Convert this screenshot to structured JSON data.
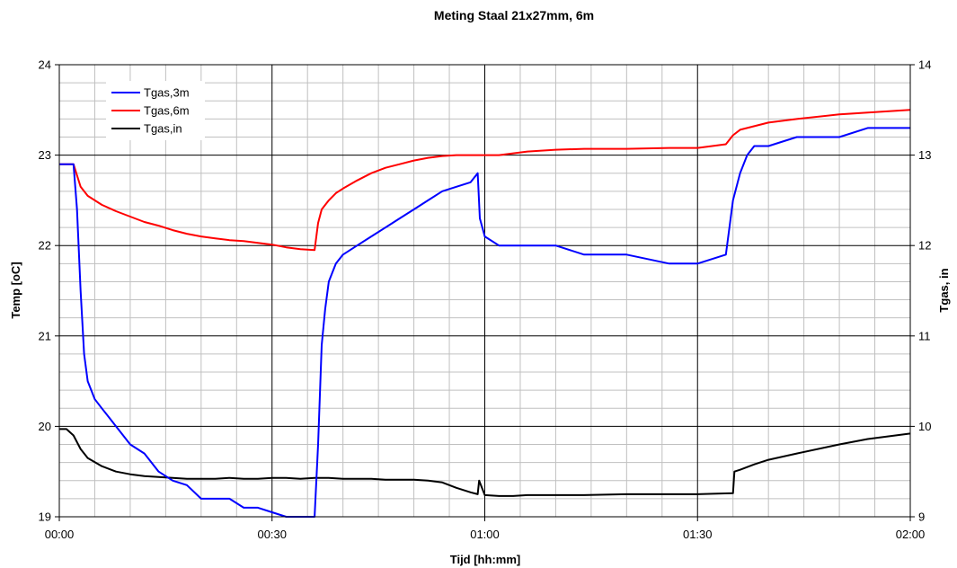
{
  "chart_data": {
    "type": "line",
    "title": "Meting Staal 21x27mm, 6m",
    "xlabel": "Tijd [hh:mm]",
    "ylabel": "Temp [oC]",
    "y2label": "Tgas, in",
    "x_unit": "minutes",
    "x_ticks": [
      "00:00",
      "00:30",
      "01:00",
      "01:30",
      "02:00"
    ],
    "xlim": [
      0,
      120
    ],
    "ylim": [
      19,
      24
    ],
    "y_ticks": [
      "19",
      "20",
      "21",
      "22",
      "23",
      "24"
    ],
    "y2lim": [
      9,
      14
    ],
    "y2_ticks": [
      "9",
      "10",
      "11",
      "12",
      "13",
      "14"
    ],
    "grid": true,
    "legend_position": "top-left",
    "legend": [
      "Tgas,3m",
      "Tgas,6m",
      "Tgas,in"
    ],
    "series": [
      {
        "name": "Tgas,3m",
        "axis": "left",
        "color": "#0000ff",
        "x": [
          0,
          2,
          2.5,
          3,
          3.5,
          4,
          5,
          6,
          7,
          8,
          10,
          12,
          14,
          16,
          18,
          20,
          22,
          24,
          26,
          28,
          30,
          32,
          34,
          36,
          36.5,
          37,
          37.5,
          38,
          38.5,
          39,
          40,
          42,
          44,
          46,
          48,
          50,
          52,
          54,
          56,
          58,
          59,
          59.3,
          60,
          62,
          64,
          66,
          70,
          74,
          80,
          86,
          90,
          94,
          95,
          96,
          97,
          98,
          100,
          104,
          110,
          114,
          120
        ],
        "values": [
          22.9,
          22.9,
          22.4,
          21.5,
          20.8,
          20.5,
          20.3,
          20.2,
          20.1,
          20.0,
          19.8,
          19.7,
          19.5,
          19.4,
          19.35,
          19.2,
          19.2,
          19.2,
          19.1,
          19.1,
          19.05,
          19.0,
          19.0,
          19.0,
          19.8,
          20.9,
          21.3,
          21.6,
          21.7,
          21.8,
          21.9,
          22.0,
          22.1,
          22.2,
          22.3,
          22.4,
          22.5,
          22.6,
          22.65,
          22.7,
          22.8,
          22.3,
          22.1,
          22.0,
          22.0,
          22.0,
          22.0,
          21.9,
          21.9,
          21.8,
          21.8,
          21.9,
          22.5,
          22.8,
          23.0,
          23.1,
          23.1,
          23.2,
          23.2,
          23.3,
          23.3
        ]
      },
      {
        "name": "Tgas,6m",
        "axis": "left",
        "color": "#ff0000",
        "x": [
          0,
          2,
          3,
          4,
          6,
          8,
          10,
          12,
          14,
          16,
          18,
          20,
          22,
          24,
          26,
          28,
          30,
          32,
          34,
          36,
          36.5,
          37,
          38,
          39,
          40,
          42,
          44,
          46,
          48,
          50,
          52,
          54,
          56,
          58,
          60,
          62,
          64,
          66,
          70,
          74,
          80,
          86,
          90,
          94,
          95,
          96,
          98,
          100,
          104,
          110,
          114,
          120
        ],
        "values": [
          22.9,
          22.9,
          22.65,
          22.55,
          22.45,
          22.38,
          22.32,
          22.26,
          22.22,
          22.17,
          22.13,
          22.1,
          22.08,
          22.06,
          22.05,
          22.03,
          22.01,
          21.98,
          21.96,
          21.95,
          22.25,
          22.4,
          22.5,
          22.58,
          22.63,
          22.72,
          22.8,
          22.86,
          22.9,
          22.94,
          22.97,
          22.99,
          23.0,
          23.0,
          23.0,
          23.0,
          23.02,
          23.04,
          23.06,
          23.07,
          23.07,
          23.08,
          23.08,
          23.12,
          23.22,
          23.28,
          23.32,
          23.36,
          23.4,
          23.45,
          23.47,
          23.5
        ]
      },
      {
        "name": "Tgas,in",
        "axis": "right",
        "color": "#000000",
        "x": [
          0,
          1,
          2,
          3,
          4,
          6,
          8,
          10,
          12,
          14,
          16,
          18,
          20,
          22,
          24,
          26,
          28,
          30,
          32,
          34,
          36,
          38,
          40,
          42,
          44,
          46,
          48,
          50,
          52,
          54,
          56,
          58,
          59,
          59.2,
          60,
          62,
          64,
          66,
          70,
          74,
          80,
          86,
          90,
          95,
          95.2,
          96,
          98,
          100,
          104,
          110,
          114,
          120
        ],
        "values": [
          9.97,
          9.97,
          9.9,
          9.75,
          9.65,
          9.56,
          9.5,
          9.47,
          9.45,
          9.44,
          9.43,
          9.42,
          9.42,
          9.42,
          9.43,
          9.42,
          9.42,
          9.43,
          9.43,
          9.42,
          9.43,
          9.43,
          9.42,
          9.42,
          9.42,
          9.41,
          9.41,
          9.41,
          9.4,
          9.38,
          9.32,
          9.27,
          9.25,
          9.4,
          9.24,
          9.23,
          9.23,
          9.24,
          9.24,
          9.24,
          9.25,
          9.25,
          9.25,
          9.26,
          9.5,
          9.52,
          9.58,
          9.63,
          9.7,
          9.8,
          9.86,
          9.92
        ]
      }
    ]
  }
}
